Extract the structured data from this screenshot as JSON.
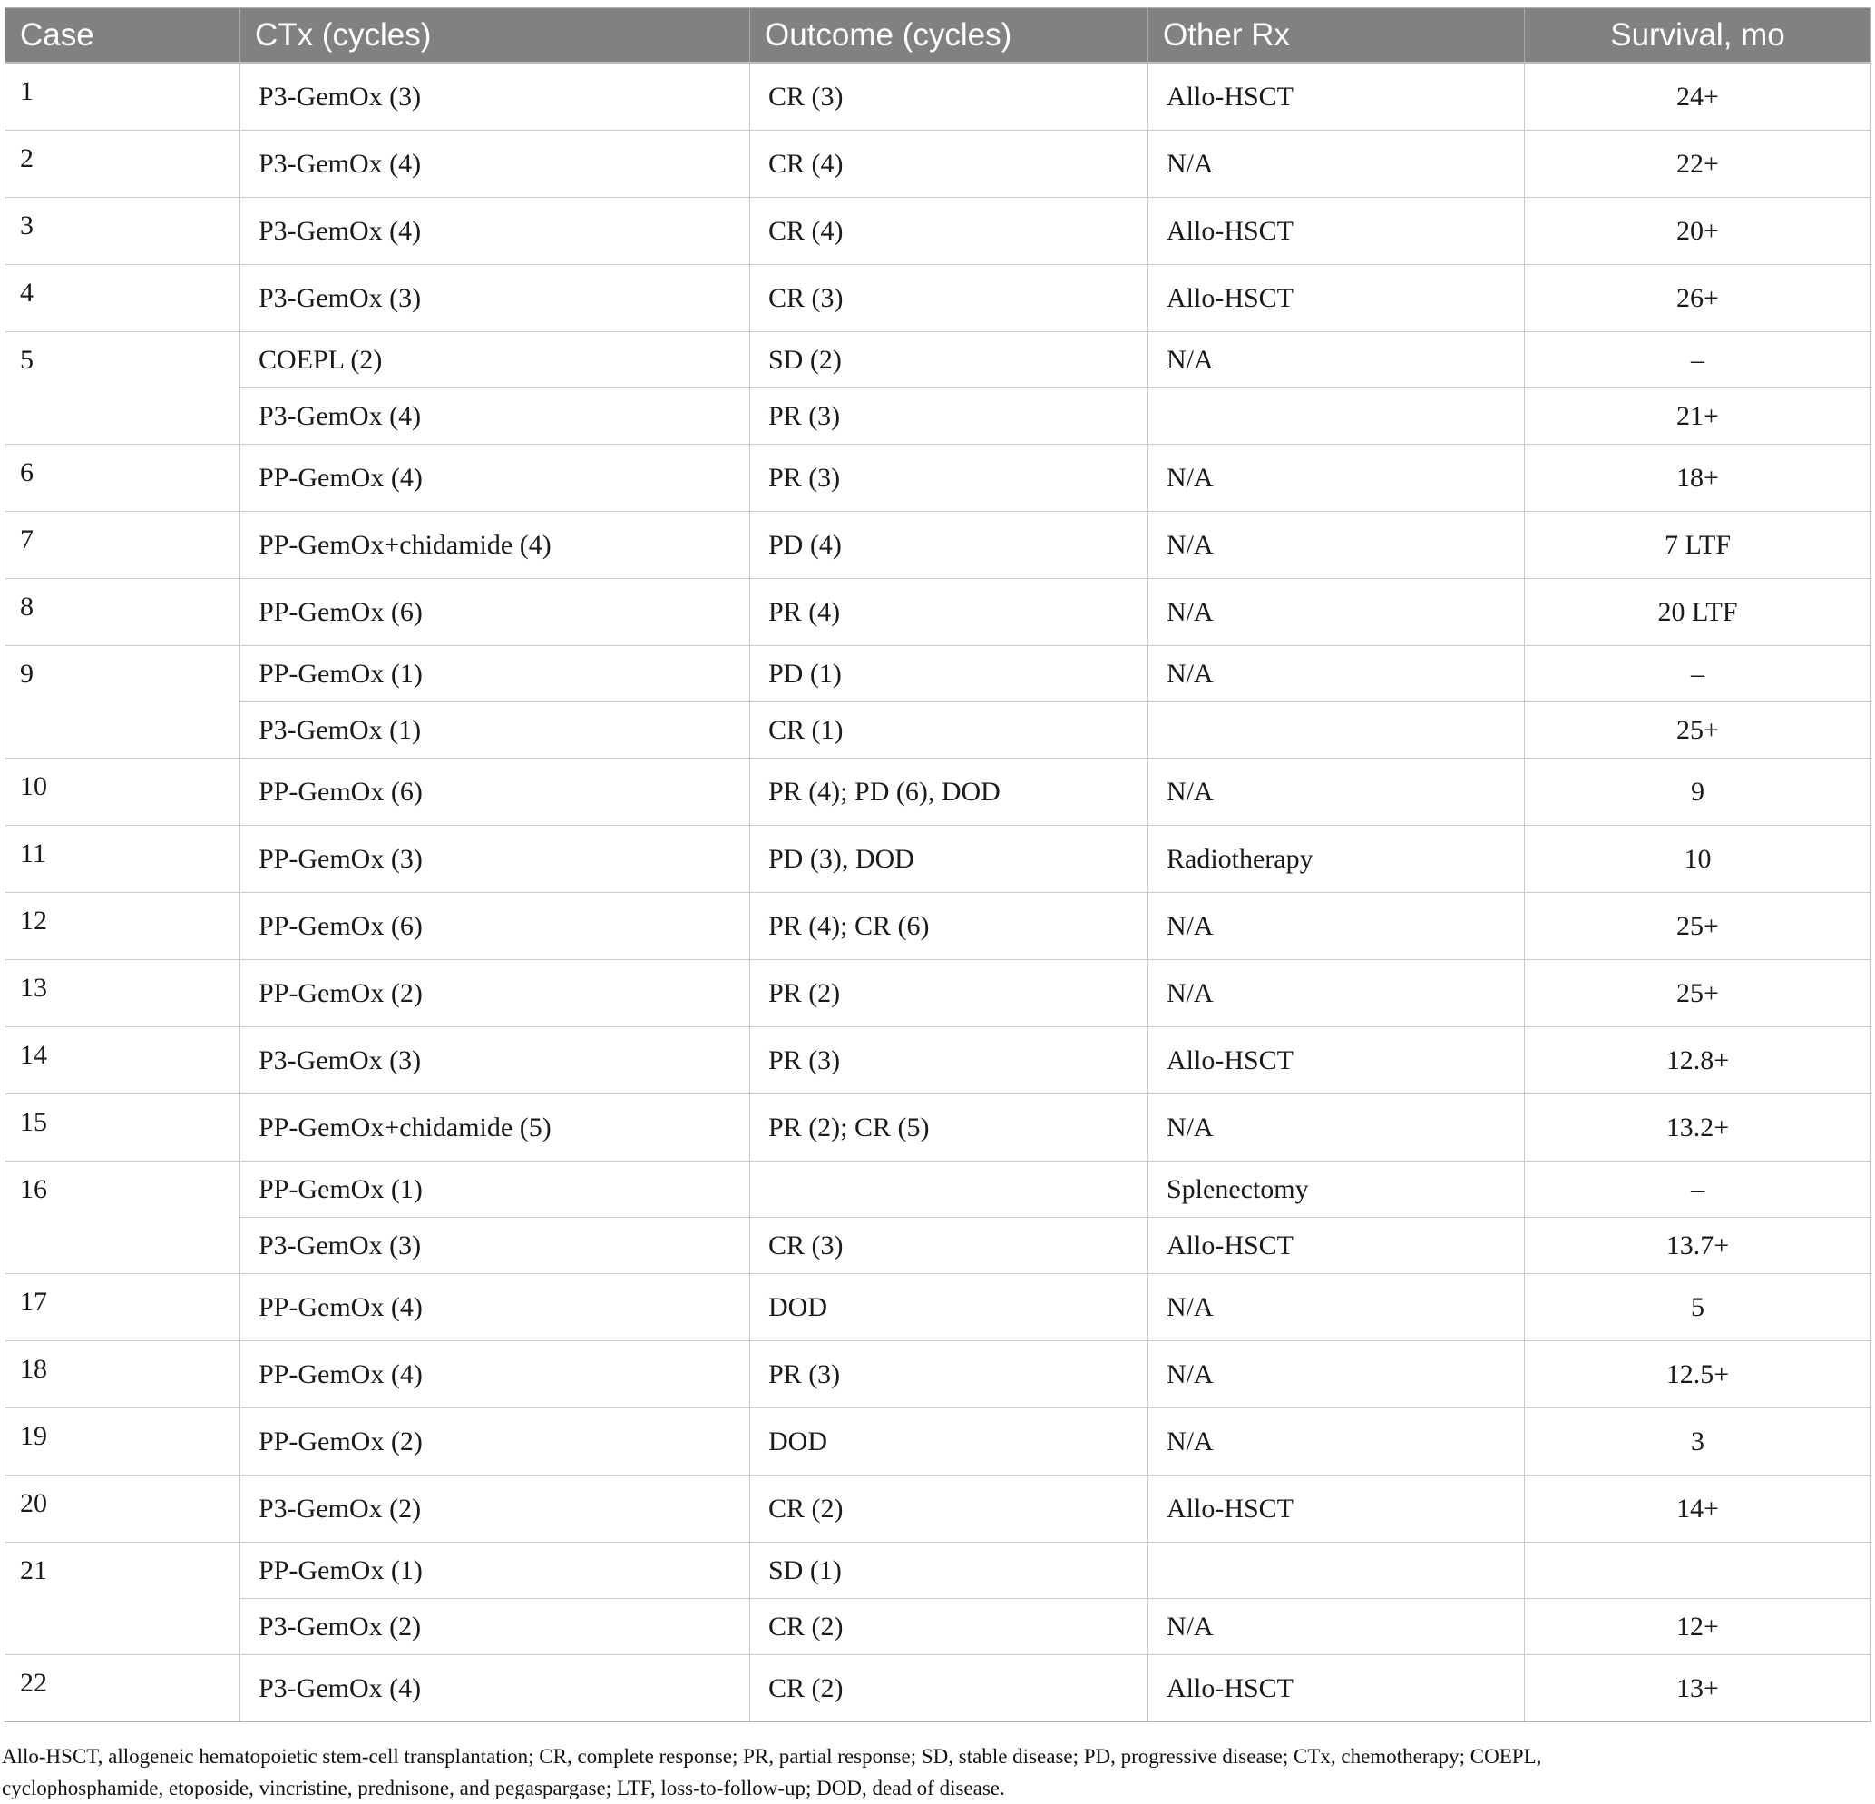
{
  "table": {
    "columns": [
      {
        "label": "Case",
        "align": "left"
      },
      {
        "label": "CTx (cycles)",
        "align": "left"
      },
      {
        "label": "Outcome (cycles)",
        "align": "left"
      },
      {
        "label": "Other Rx",
        "align": "left"
      },
      {
        "label": "Survival, mo",
        "align": "center"
      }
    ],
    "cases": [
      {
        "case": "1",
        "rows": [
          {
            "ctx": "P3-GemOx (3)",
            "outcome": "CR (3)",
            "other": "Allo-HSCT",
            "survival": "24+"
          }
        ]
      },
      {
        "case": "2",
        "rows": [
          {
            "ctx": "P3-GemOx (4)",
            "outcome": "CR (4)",
            "other": "N/A",
            "survival": "22+"
          }
        ]
      },
      {
        "case": "3",
        "rows": [
          {
            "ctx": "P3-GemOx (4)",
            "outcome": "CR (4)",
            "other": "Allo-HSCT",
            "survival": "20+"
          }
        ]
      },
      {
        "case": "4",
        "rows": [
          {
            "ctx": "P3-GemOx (3)",
            "outcome": "CR (3)",
            "other": "Allo-HSCT",
            "survival": "26+"
          }
        ]
      },
      {
        "case": "5",
        "rows": [
          {
            "ctx": "COEPL (2)",
            "outcome": "SD (2)",
            "other": "N/A",
            "survival": "–"
          },
          {
            "ctx": "P3-GemOx (4)",
            "outcome": "PR (3)",
            "other": "",
            "survival": "21+"
          }
        ]
      },
      {
        "case": "6",
        "rows": [
          {
            "ctx": "PP-GemOx (4)",
            "outcome": "PR (3)",
            "other": "N/A",
            "survival": "18+"
          }
        ]
      },
      {
        "case": "7",
        "rows": [
          {
            "ctx": "PP-GemOx+chidamide (4)",
            "outcome": "PD (4)",
            "other": "N/A",
            "survival": "7 LTF"
          }
        ]
      },
      {
        "case": "8",
        "rows": [
          {
            "ctx": "PP-GemOx (6)",
            "outcome": "PR (4)",
            "other": "N/A",
            "survival": "20 LTF"
          }
        ]
      },
      {
        "case": "9",
        "rows": [
          {
            "ctx": "PP-GemOx (1)",
            "outcome": "PD (1)",
            "other": "N/A",
            "survival": "–"
          },
          {
            "ctx": "P3-GemOx (1)",
            "outcome": "CR (1)",
            "other": "",
            "survival": "25+"
          }
        ]
      },
      {
        "case": "10",
        "rows": [
          {
            "ctx": "PP-GemOx (6)",
            "outcome": "PR (4); PD (6), DOD",
            "other": "N/A",
            "survival": "9"
          }
        ]
      },
      {
        "case": "11",
        "rows": [
          {
            "ctx": "PP-GemOx (3)",
            "outcome": "PD (3), DOD",
            "other": "Radiotherapy",
            "survival": "10"
          }
        ]
      },
      {
        "case": "12",
        "rows": [
          {
            "ctx": "PP-GemOx (6)",
            "outcome": "PR (4); CR (6)",
            "other": "N/A",
            "survival": "25+"
          }
        ]
      },
      {
        "case": "13",
        "rows": [
          {
            "ctx": "PP-GemOx (2)",
            "outcome": "PR (2)",
            "other": "N/A",
            "survival": "25+"
          }
        ]
      },
      {
        "case": "14",
        "rows": [
          {
            "ctx": "P3-GemOx (3)",
            "outcome": "PR (3)",
            "other": "Allo-HSCT",
            "survival": "12.8+"
          }
        ]
      },
      {
        "case": "15",
        "rows": [
          {
            "ctx": "PP-GemOx+chidamide (5)",
            "outcome": "PR (2); CR (5)",
            "other": "N/A",
            "survival": "13.2+"
          }
        ]
      },
      {
        "case": "16",
        "rows": [
          {
            "ctx": "PP-GemOx (1)",
            "outcome": "",
            "other": "Splenectomy",
            "survival": "–"
          },
          {
            "ctx": "P3-GemOx (3)",
            "outcome": "CR (3)",
            "other": "Allo-HSCT",
            "survival": "13.7+"
          }
        ]
      },
      {
        "case": "17",
        "rows": [
          {
            "ctx": "PP-GemOx (4)",
            "outcome": "DOD",
            "other": "N/A",
            "survival": "5"
          }
        ]
      },
      {
        "case": "18",
        "rows": [
          {
            "ctx": "PP-GemOx (4)",
            "outcome": "PR (3)",
            "other": "N/A",
            "survival": "12.5+"
          }
        ]
      },
      {
        "case": "19",
        "rows": [
          {
            "ctx": "PP-GemOx (2)",
            "outcome": "DOD",
            "other": "N/A",
            "survival": "3"
          }
        ]
      },
      {
        "case": "20",
        "rows": [
          {
            "ctx": "P3-GemOx (2)",
            "outcome": "CR (2)",
            "other": "Allo-HSCT",
            "survival": "14+"
          }
        ]
      },
      {
        "case": "21",
        "rows": [
          {
            "ctx": "PP-GemOx (1)",
            "outcome": "SD (1)",
            "other": "",
            "survival": ""
          },
          {
            "ctx": "P3-GemOx (2)",
            "outcome": "CR (2)",
            "other": "N/A",
            "survival": "12+"
          }
        ]
      },
      {
        "case": "22",
        "rows": [
          {
            "ctx": "P3-GemOx (4)",
            "outcome": "CR (2)",
            "other": "Allo-HSCT",
            "survival": "13+"
          }
        ]
      }
    ]
  },
  "footnote_lines": [
    "Allo-HSCT, allogeneic hematopoietic stem-cell transplantation; CR, complete response; PR, partial response; SD, stable disease; PD, progressive disease; CTx, chemotherapy; COEPL,",
    "cyclophosphamide, etoposide, vincristine, prednisone, and pegaspargase; LTF, loss-to-follow-up; DOD, dead of disease."
  ],
  "colors": {
    "header_bg": "#7f8183",
    "header_text": "#ffffff",
    "grid_border": "#c9c9c9",
    "case_border": "#b5b5b5",
    "body_text": "#1a1a1a"
  }
}
